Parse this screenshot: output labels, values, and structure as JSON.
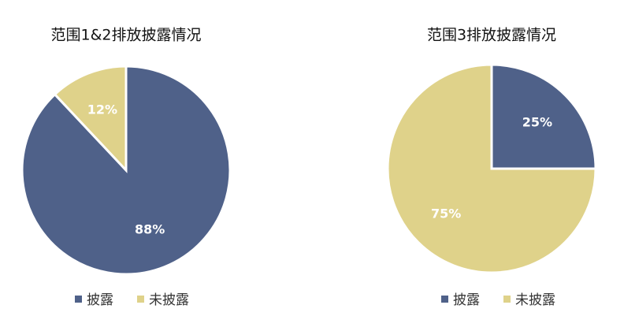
{
  "chart_data": [
    {
      "type": "pie",
      "title": "范围1&2排放披露情况",
      "categories": [
        "披露",
        "未披露"
      ],
      "values": [
        88,
        12
      ],
      "value_labels": [
        "88%",
        "12%"
      ],
      "colors": [
        "#4f6189",
        "#dfd28a"
      ],
      "legend": "bottom"
    },
    {
      "type": "pie",
      "title": "范围3排放披露情况",
      "categories": [
        "披露",
        "未披露"
      ],
      "values": [
        25,
        75
      ],
      "value_labels": [
        "25%",
        "75%"
      ],
      "colors": [
        "#4f6189",
        "#dfd28a"
      ],
      "legend": "bottom"
    }
  ]
}
